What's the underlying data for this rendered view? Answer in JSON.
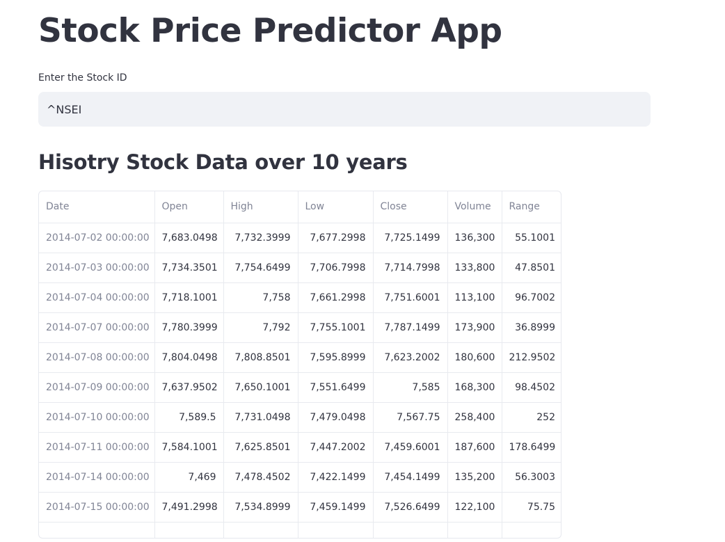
{
  "app": {
    "title": "Stock Price Predictor App"
  },
  "stock_input": {
    "label": "Enter the Stock ID",
    "value": "^NSEI"
  },
  "history_section": {
    "title": "Hisotry Stock Data over 10 years"
  },
  "table": {
    "columns": [
      "Date",
      "Open",
      "High",
      "Low",
      "Close",
      "Volume",
      "Range"
    ],
    "rows": [
      [
        "2014-07-02 00:00:00",
        "7,683.0498",
        "7,732.3999",
        "7,677.2998",
        "7,725.1499",
        "136,300",
        "55.1001"
      ],
      [
        "2014-07-03 00:00:00",
        "7,734.3501",
        "7,754.6499",
        "7,706.7998",
        "7,714.7998",
        "133,800",
        "47.8501"
      ],
      [
        "2014-07-04 00:00:00",
        "7,718.1001",
        "7,758",
        "7,661.2998",
        "7,751.6001",
        "113,100",
        "96.7002"
      ],
      [
        "2014-07-07 00:00:00",
        "7,780.3999",
        "7,792",
        "7,755.1001",
        "7,787.1499",
        "173,900",
        "36.8999"
      ],
      [
        "2014-07-08 00:00:00",
        "7,804.0498",
        "7,808.8501",
        "7,595.8999",
        "7,623.2002",
        "180,600",
        "212.9502"
      ],
      [
        "2014-07-09 00:00:00",
        "7,637.9502",
        "7,650.1001",
        "7,551.6499",
        "7,585",
        "168,300",
        "98.4502"
      ],
      [
        "2014-07-10 00:00:00",
        "7,589.5",
        "7,731.0498",
        "7,479.0498",
        "7,567.75",
        "258,400",
        "252"
      ],
      [
        "2014-07-11 00:00:00",
        "7,584.1001",
        "7,625.8501",
        "7,447.2002",
        "7,459.6001",
        "187,600",
        "178.6499"
      ],
      [
        "2014-07-14 00:00:00",
        "7,469",
        "7,478.4502",
        "7,422.1499",
        "7,454.1499",
        "135,200",
        "56.3003"
      ],
      [
        "2014-07-15 00:00:00",
        "7,491.2998",
        "7,534.8999",
        "7,459.1499",
        "7,526.6499",
        "122,100",
        "75.75"
      ],
      [
        "",
        "",
        "",
        "",
        "",
        "",
        ""
      ]
    ]
  }
}
